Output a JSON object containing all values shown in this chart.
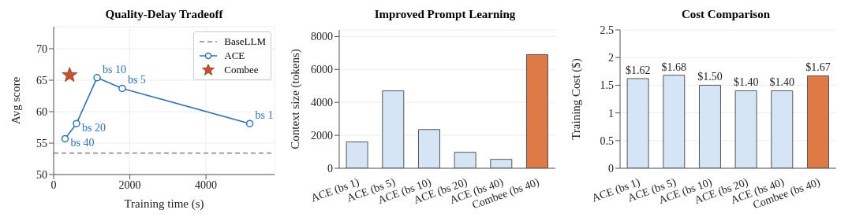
{
  "chart_data": [
    {
      "type": "line",
      "title": "Quality-Delay Tradeoff",
      "xlabel": "Training time (s)",
      "ylabel": "Avg score",
      "xlim": [
        0,
        5800
      ],
      "xticks": [
        0,
        2000,
        4000
      ],
      "ylim": [
        50,
        73.5
      ],
      "yticks": [
        50,
        55,
        60,
        65,
        70
      ],
      "grid": true,
      "legend": "top right",
      "ref_lines": [
        {
          "axis": "y",
          "value": 53.4,
          "label": "BaseLLM",
          "color": "#888888",
          "line_style": "dashed"
        }
      ],
      "series": [
        {
          "name": "ACE",
          "type": "line",
          "color": "#3274b0",
          "marker": "circle",
          "x": [
            300,
            600,
            1140,
            1800,
            5150
          ],
          "values": [
            55.7,
            58.1,
            65.4,
            63.7,
            58.1
          ],
          "value_labels": [
            "bs 40",
            "bs 20",
            "bs 10",
            "bs 5",
            "bs 1"
          ]
        },
        {
          "name": "Combee",
          "type": "scatter",
          "color": "#c8512a",
          "marker": "star",
          "x": [
            420
          ],
          "values": [
            65.8
          ]
        }
      ]
    },
    {
      "type": "bar",
      "title": "Improved Prompt Learning",
      "ylabel": "Context size (tokens)",
      "categories": [
        "ACE (bs 1)",
        "ACE (bs 5)",
        "ACE (bs 10)",
        "ACE (bs 20)",
        "ACE (bs 40)",
        "Combee (bs 40)"
      ],
      "values": [
        1600,
        4700,
        2350,
        970,
        540,
        6900
      ],
      "colors": [
        "#d5e5f6",
        "#d5e5f6",
        "#d5e5f6",
        "#d5e5f6",
        "#d5e5f6",
        "#dd7a45"
      ],
      "ylim": [
        0,
        8400
      ],
      "yticks": [
        0,
        2000,
        4000,
        6000,
        8000
      ],
      "grid": "y"
    },
    {
      "type": "bar",
      "title": "Cost Comparison",
      "ylabel": "Training Cost ($)",
      "categories": [
        "ACE (bs 1)",
        "ACE (bs 5)",
        "ACE (bs 10)",
        "ACE (bs 20)",
        "ACE (bs 40)",
        "Combee (bs 40)"
      ],
      "values": [
        1.62,
        1.68,
        1.5,
        1.4,
        1.4,
        1.67
      ],
      "value_labels": [
        "$1.62",
        "$1.68",
        "$1.50",
        "$1.40",
        "$1.40",
        "$1.67"
      ],
      "colors": [
        "#d5e5f6",
        "#d5e5f6",
        "#d5e5f6",
        "#d5e5f6",
        "#d5e5f6",
        "#dd7a45"
      ],
      "ylim": [
        0,
        2.5
      ],
      "yticks": [
        0,
        0.5,
        1.0,
        1.5,
        2.0,
        2.5
      ],
      "grid": "y"
    }
  ]
}
